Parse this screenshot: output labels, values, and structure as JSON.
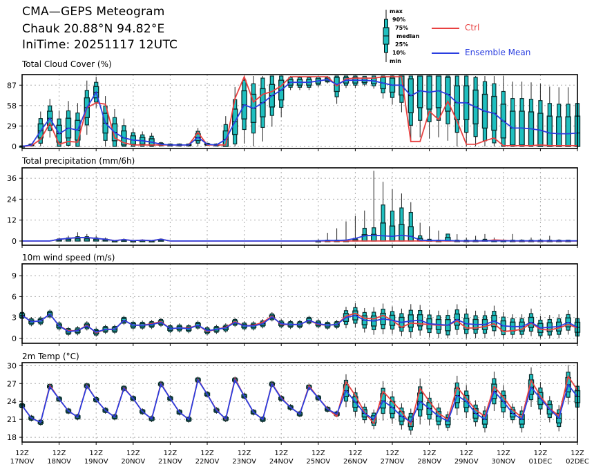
{
  "header": {
    "title": "CMA—GEPS Meteogram",
    "location": "Chauk 20.88°N 94.82°E",
    "init_time": "IniTime: 20251117 12UTC"
  },
  "legend": {
    "box_labels": [
      "max",
      "90%",
      "75%",
      "median",
      "25%",
      "10%",
      "min"
    ],
    "ctrl_label": "Ctrl",
    "mean_label": "Ensemble Mean",
    "ctrl_color": "#e84040",
    "mean_color": "#2a3ee0",
    "box_color": "#1fbfbf"
  },
  "chart_data": [
    {
      "type": "box+line",
      "title": "Total Cloud Cover (%)",
      "yticks": [
        0,
        29,
        58,
        87
      ],
      "ylim": [
        -3,
        102
      ],
      "mean": [
        0,
        2,
        22,
        40,
        18,
        26,
        23,
        55,
        77,
        33,
        20,
        12,
        9,
        8,
        6,
        3,
        2,
        2,
        2,
        13,
        3,
        2,
        10,
        35,
        59,
        54,
        62,
        72,
        80,
        91,
        91,
        91,
        93,
        95,
        88,
        94,
        94,
        94,
        93,
        90,
        87,
        87,
        72,
        79,
        77,
        79,
        74,
        62,
        62,
        56,
        50,
        47,
        36,
        26,
        26,
        25,
        23,
        19,
        18,
        18,
        19
      ],
      "ctrl": [
        0,
        1,
        10,
        33,
        3,
        7,
        6,
        55,
        62,
        60,
        12,
        5,
        2,
        2,
        2,
        2,
        2,
        2,
        2,
        20,
        2,
        2,
        2,
        68,
        99,
        63,
        74,
        78,
        86,
        99,
        99,
        99,
        99,
        99,
        86,
        96,
        97,
        97,
        97,
        99,
        99,
        99,
        7,
        7,
        50,
        38,
        64,
        36,
        3,
        3,
        8,
        12,
        1,
        1,
        1,
        1,
        2,
        1,
        1,
        1,
        1
      ],
      "spread": [
        1,
        2,
        25,
        25,
        30,
        35,
        35,
        35,
        20,
        35,
        30,
        25,
        15,
        12,
        12,
        3,
        2,
        2,
        2,
        12,
        2,
        2,
        30,
        45,
        50,
        50,
        50,
        40,
        35,
        10,
        10,
        10,
        8,
        5,
        25,
        10,
        10,
        8,
        10,
        20,
        25,
        35,
        60,
        60,
        60,
        60,
        60,
        60,
        60,
        60,
        60,
        60,
        60,
        60,
        60,
        60,
        60,
        60,
        60,
        60,
        60
      ],
      "clamp": [
        0,
        100
      ]
    },
    {
      "type": "box+line",
      "title": "Total precipitation (mm/6h)",
      "yticks": [
        0,
        12,
        24,
        36
      ],
      "ylim": [
        -2.4,
        42
      ],
      "mean": [
        0,
        0,
        0,
        0,
        1,
        1.5,
        2,
        2,
        1.5,
        1,
        0.2,
        0.8,
        0.2,
        0.5,
        0.2,
        1,
        0,
        0,
        0,
        0,
        0,
        0,
        0,
        0,
        0,
        0,
        0,
        0,
        0,
        0,
        0,
        0,
        0.1,
        0.3,
        0.3,
        0.5,
        1.5,
        3,
        3.3,
        3,
        2.7,
        3.3,
        2.7,
        0.5,
        0.3,
        0.3,
        0.3,
        0.1,
        0.1,
        0.1,
        0.1,
        0.1,
        0.1,
        0.1,
        0.1,
        0.1,
        0.1,
        0.1,
        0.1,
        0.1,
        0.1
      ],
      "ctrl": [
        0,
        0,
        0,
        0,
        1,
        1.5,
        2,
        2,
        1.5,
        1,
        0.2,
        0.8,
        0.2,
        0.5,
        0.2,
        1,
        0,
        0,
        0,
        0,
        0,
        0,
        0,
        0,
        0,
        0,
        0,
        0,
        0,
        0,
        0,
        0,
        0,
        0,
        0,
        0,
        0,
        0,
        0,
        0,
        0,
        0,
        0,
        0,
        0,
        0,
        0,
        0,
        0,
        0,
        0,
        0.6,
        0.4,
        0,
        0,
        0,
        0,
        0,
        0,
        0,
        0
      ],
      "p90": [
        0,
        0,
        0,
        0,
        1.2,
        1.8,
        2.5,
        2.5,
        1.8,
        1.2,
        0.2,
        0.8,
        0.2,
        0.5,
        0.2,
        1,
        0,
        0,
        0,
        0,
        0,
        0,
        0,
        0,
        0,
        0,
        0,
        0,
        0,
        0,
        0,
        0,
        0.2,
        0.5,
        0.5,
        0.5,
        1.5,
        7.3,
        7.6,
        20.7,
        17.2,
        19,
        16.4,
        3,
        1,
        0.5,
        4,
        0.5,
        0.5,
        0.5,
        1,
        0.5,
        0.5,
        0.5,
        0.5,
        0.5,
        0.5,
        0.5,
        0.5,
        0.5,
        0.5
      ],
      "max": [
        0,
        0,
        0,
        0,
        2,
        3,
        5,
        4,
        3,
        2,
        0.5,
        1.5,
        0.5,
        1,
        0.5,
        1.5,
        0,
        0,
        0,
        0,
        0,
        0,
        0,
        0,
        0,
        0,
        0,
        0,
        0,
        0,
        0,
        0,
        1,
        4.7,
        7.3,
        11.3,
        14.5,
        17.5,
        40.3,
        34,
        29.7,
        27.3,
        22.3,
        10.5,
        8.4,
        6,
        4,
        3.9,
        2,
        3,
        4,
        2,
        1,
        4,
        1,
        2,
        1,
        3,
        1,
        0.5,
        0
      ]
    },
    {
      "type": "box+line",
      "title": "10m wind speed (m/s)",
      "yticks": [
        0,
        3,
        6,
        9
      ],
      "ylim": [
        -0.7,
        10.7
      ],
      "mean": [
        3.3,
        2.4,
        2.5,
        3.5,
        1.8,
        1.0,
        1.1,
        1.8,
        0.9,
        1.3,
        1.3,
        2.6,
        1.9,
        1.9,
        2.0,
        2.3,
        1.4,
        1.5,
        1.4,
        1.9,
        1.1,
        1.3,
        1.5,
        2.3,
        1.8,
        1.8,
        2.1,
        3.1,
        2.1,
        2.0,
        2.0,
        2.6,
        2.1,
        1.9,
        2.0,
        3.0,
        3.3,
        2.6,
        2.5,
        2.8,
        2.6,
        2.3,
        2.5,
        2.6,
        2.1,
        2.0,
        1.9,
        2.7,
        2.1,
        2.0,
        2.0,
        2.5,
        1.8,
        1.7,
        1.7,
        2.3,
        1.5,
        1.6,
        1.7,
        2.3,
        1.6
      ],
      "ctrl": [
        3.3,
        2.4,
        2.5,
        3.5,
        1.8,
        1.1,
        1.1,
        1.9,
        0.8,
        1.3,
        1.3,
        2.6,
        1.9,
        1.9,
        2.1,
        2.4,
        1.4,
        1.5,
        1.5,
        1.9,
        1.0,
        1.3,
        1.6,
        2.4,
        1.8,
        1.9,
        2.3,
        3.2,
        2.0,
        2.0,
        2.0,
        2.6,
        2.0,
        1.9,
        2.0,
        3.2,
        3.6,
        2.9,
        2.8,
        3.3,
        2.6,
        1.6,
        2.2,
        2.1,
        2.0,
        1.9,
        1.9,
        2.5,
        1.5,
        1.5,
        1.7,
        2.1,
        1.0,
        1.1,
        1.3,
        2.2,
        1.3,
        1.2,
        1.5,
        2.0,
        1.5
      ],
      "spread": [
        0.6,
        0.6,
        0.6,
        0.6,
        0.6,
        0.6,
        0.6,
        0.6,
        0.6,
        0.6,
        0.6,
        0.6,
        0.6,
        0.6,
        0.6,
        0.6,
        0.6,
        0.6,
        0.6,
        0.6,
        0.6,
        0.6,
        0.6,
        0.6,
        0.6,
        0.6,
        0.6,
        0.6,
        0.6,
        0.6,
        0.6,
        0.6,
        0.6,
        0.6,
        0.6,
        1.4,
        1.6,
        1.6,
        1.8,
        2.0,
        1.8,
        1.8,
        2.2,
        2.0,
        1.8,
        1.8,
        2.0,
        2.0,
        2.0,
        1.8,
        1.8,
        2.0,
        1.8,
        1.6,
        1.6,
        1.8,
        1.6,
        1.6,
        1.6,
        1.6,
        1.8
      ],
      "clamp": [
        0,
        12
      ]
    },
    {
      "type": "box+line",
      "title": "2m Temp (°C)",
      "yticks": [
        18,
        21,
        24,
        27,
        30
      ],
      "ylim": [
        17.2,
        30.5
      ],
      "mean": [
        23.3,
        21.2,
        20.5,
        26.5,
        24.4,
        22.4,
        21.4,
        26.6,
        24.3,
        22.5,
        21.4,
        26.2,
        24.5,
        22.3,
        21.1,
        26.9,
        24.5,
        22.2,
        21.0,
        27.6,
        25.2,
        22.5,
        21.1,
        27.6,
        24.9,
        22.2,
        21.0,
        26.9,
        24.5,
        23.0,
        21.9,
        26.4,
        24.6,
        22.7,
        21.9,
        25.8,
        23.9,
        22.0,
        21.0,
        24.1,
        23.0,
        21.5,
        20.6,
        24.0,
        22.8,
        21.5,
        20.7,
        25.0,
        24.0,
        22.0,
        21.0,
        25.7,
        24.0,
        22.0,
        21.0,
        26.4,
        24.5,
        22.7,
        21.2,
        26.8,
        24.8
      ],
      "ctrl": [
        23.3,
        21.2,
        20.5,
        26.7,
        24.4,
        22.4,
        21.4,
        26.7,
        24.3,
        22.5,
        21.4,
        26.3,
        24.5,
        22.3,
        21.1,
        27.0,
        24.5,
        22.2,
        21.0,
        27.7,
        25.2,
        22.6,
        21.0,
        27.8,
        24.9,
        22.2,
        21.0,
        27.0,
        24.6,
        23.0,
        21.9,
        26.6,
        24.6,
        22.8,
        21.5,
        27.3,
        25.0,
        22.2,
        20.3,
        25.7,
        24.0,
        22.3,
        20.1,
        26.2,
        24.0,
        22.0,
        21.0,
        26.4,
        24.5,
        22.6,
        21.5,
        26.5,
        24.7,
        22.6,
        21.3,
        27.5,
        24.9,
        22.8,
        21.6,
        28.2,
        25.9
      ],
      "spread": [
        0.5,
        0.5,
        0.5,
        0.5,
        0.5,
        0.5,
        0.5,
        0.5,
        0.5,
        0.5,
        0.5,
        0.5,
        0.5,
        0.5,
        0.5,
        0.5,
        0.5,
        0.5,
        0.5,
        0.5,
        0.5,
        0.5,
        0.5,
        0.5,
        0.5,
        0.5,
        0.5,
        0.5,
        0.5,
        0.5,
        0.5,
        0.5,
        0.5,
        0.5,
        0.5,
        2.5,
        2.2,
        1.5,
        1.5,
        3,
        2.5,
        2,
        2,
        3.5,
        2.5,
        2,
        1.5,
        3,
        2.5,
        2,
        2,
        3,
        2.5,
        1.5,
        2,
        3,
        2.5,
        2,
        2,
        3,
        2.5
      ],
      "clamp": [
        -50,
        60
      ]
    }
  ],
  "x_axis": {
    "hour_label": "12Z",
    "dates": [
      "17NOV",
      "18NOV",
      "19NOV",
      "20NOV",
      "21NOV",
      "22NOV",
      "23NOV",
      "24NOV",
      "25NOV",
      "26NOV",
      "27NOV",
      "28NOV",
      "29NOV",
      "30NOV",
      "01DEC",
      "02DEC"
    ]
  }
}
